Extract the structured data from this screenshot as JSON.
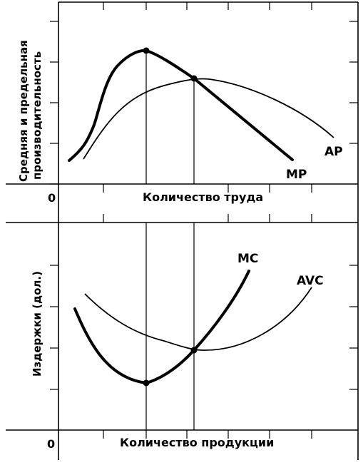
{
  "top_panel": {
    "ylabel_line1": "Средняя и предельная",
    "ylabel_line2": "производительность",
    "xlabel": "Количество труда",
    "origin": "0",
    "curve_ap_label": "AP",
    "curve_mp_label": "MP"
  },
  "bottom_panel": {
    "ylabel": "Издержки (дол.)",
    "xlabel": "Количество продукции",
    "origin": "0",
    "curve_mc_label": "MC",
    "curve_avc_label": "AVC"
  },
  "colors": {
    "ink": "#000000",
    "background": "#ffffff"
  }
}
